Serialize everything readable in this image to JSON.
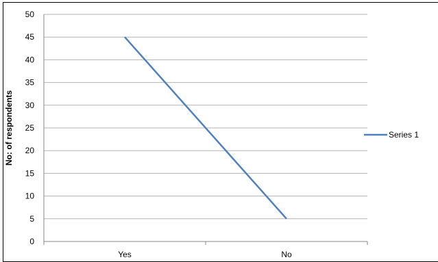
{
  "chart_data": {
    "type": "line",
    "title": "",
    "xlabel": "",
    "ylabel": "No: of respondents",
    "categories": [
      "Yes",
      "No"
    ],
    "series": [
      {
        "name": "Series 1",
        "values": [
          45,
          5
        ],
        "color": "#4F81BD"
      }
    ],
    "ylim": [
      0,
      50
    ],
    "yticks": [
      "0",
      "5",
      "10",
      "15",
      "20",
      "25",
      "30",
      "35",
      "40",
      "45",
      "50"
    ],
    "grid": true,
    "legend_position": "right"
  }
}
